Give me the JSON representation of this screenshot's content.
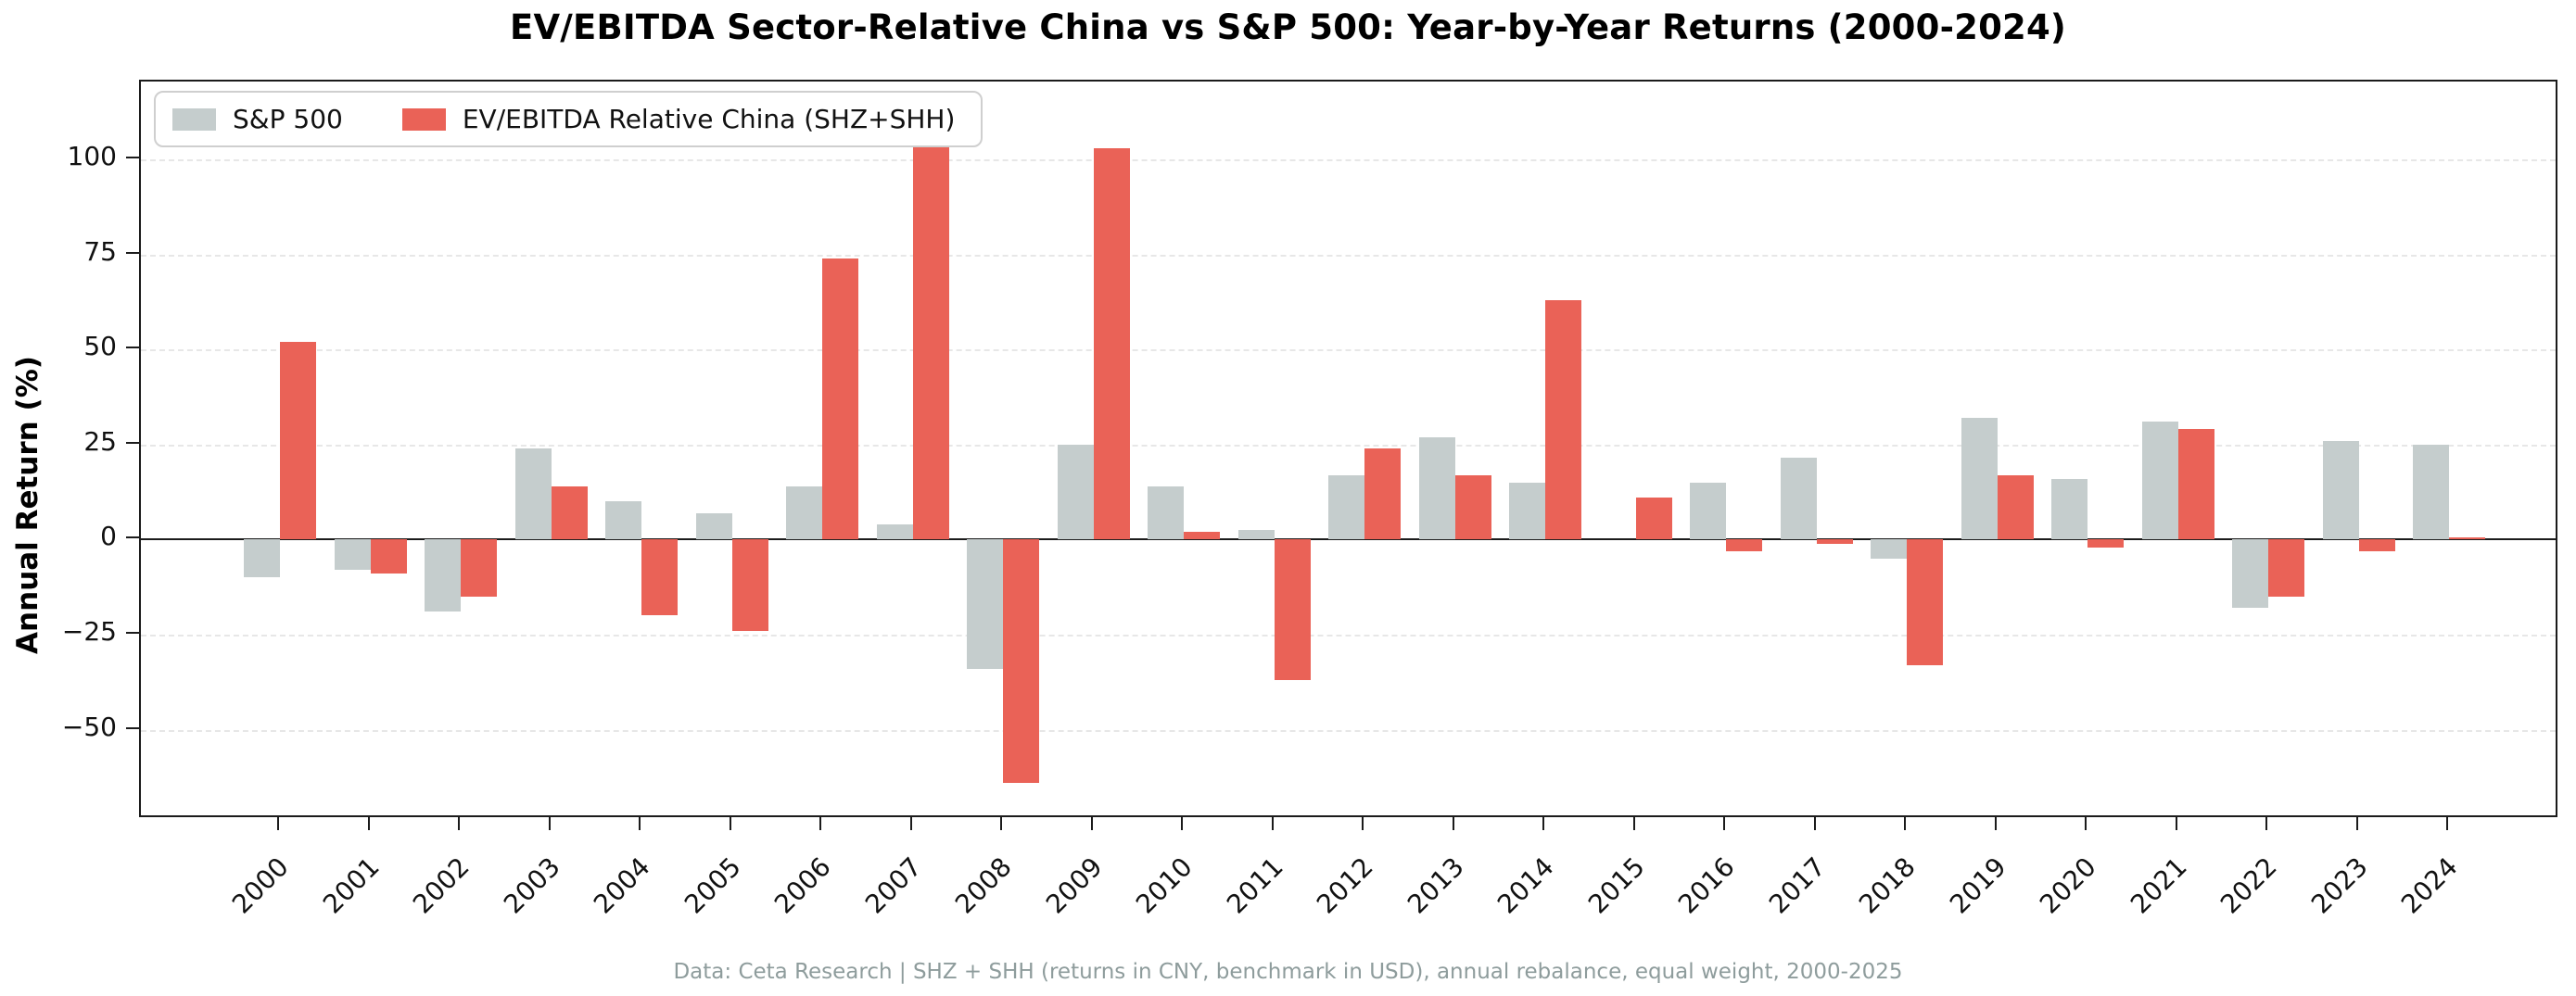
{
  "title": "EV/EBITDA Sector-Relative China vs S&P 500: Year-by-Year Returns (2000-2024)",
  "footnote": "Data: Ceta Research | SHZ + SHH (returns in CNY, benchmark in USD), annual rebalance, equal weight, 2000-2025",
  "colors": {
    "sp500": "#c5cdcd",
    "china": "#ea6257",
    "gridline": "#e7e7e7",
    "axis": "#1b1b1b",
    "footnote_text": "#8e9c9c"
  },
  "chart_data": {
    "type": "bar",
    "title": "EV/EBITDA Sector-Relative China vs S&P 500: Year-by-Year Returns (2000-2024)",
    "xlabel": "",
    "ylabel": "Annual Return (%)",
    "categories": [
      "2000",
      "2001",
      "2002",
      "2003",
      "2004",
      "2005",
      "2006",
      "2007",
      "2008",
      "2009",
      "2010",
      "2011",
      "2012",
      "2013",
      "2014",
      "2015",
      "2016",
      "2017",
      "2018",
      "2019",
      "2020",
      "2021",
      "2022",
      "2023",
      "2024"
    ],
    "series": [
      {
        "name": "S&P 500",
        "color": "#c5cdcd",
        "values": [
          -10,
          -8,
          -19,
          24,
          10,
          7,
          14,
          4,
          -34,
          25,
          14,
          2.5,
          17,
          27,
          15,
          0,
          15,
          21.5,
          -5,
          32,
          16,
          31,
          -18,
          26,
          25
        ]
      },
      {
        "name": "EV/EBITDA Relative China (SHZ+SHH)",
        "color": "#ea6257",
        "values": [
          52,
          -9,
          -15,
          14,
          -20,
          -24,
          74,
          111,
          -64,
          103,
          2,
          -37,
          24,
          17,
          63,
          11,
          -3,
          -1,
          -33,
          17,
          -2,
          29,
          -15,
          -3,
          0.5
        ]
      }
    ],
    "yticks": [
      100,
      75,
      50,
      25,
      0,
      -25,
      -50
    ],
    "ylim": [
      -73.5,
      120.5
    ],
    "grid": "horizontal-dashed",
    "legend_position": "upper-left"
  }
}
